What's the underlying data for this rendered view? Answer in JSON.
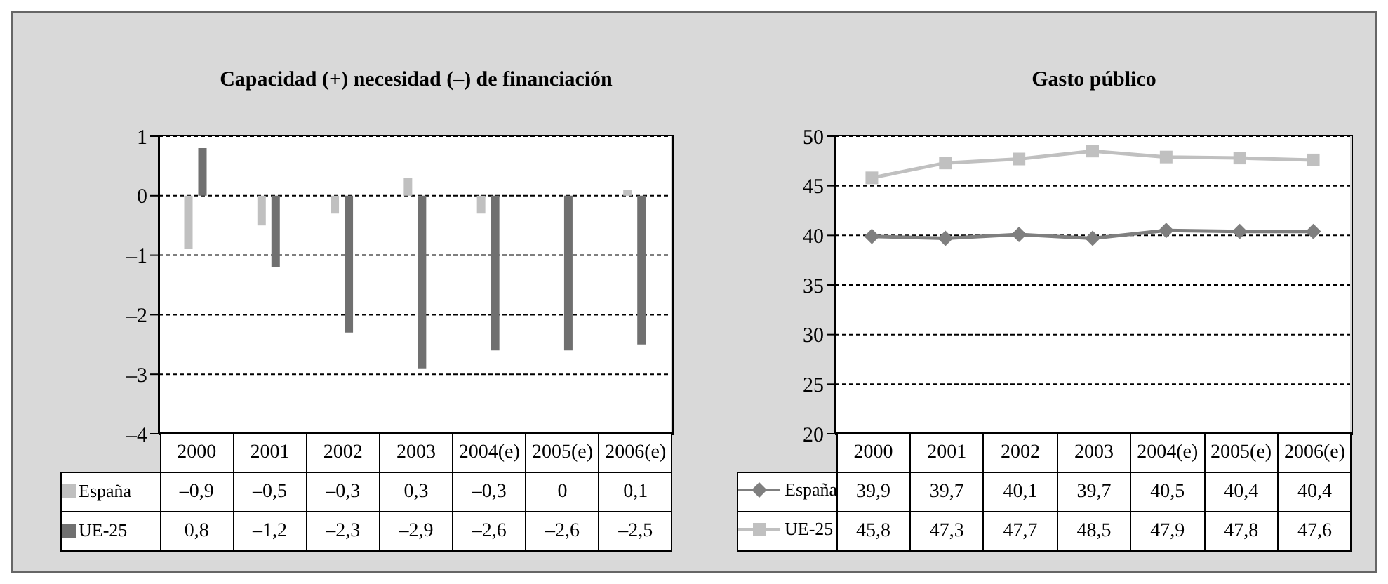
{
  "chart_data": [
    {
      "type": "bar",
      "title": "Capacidad (+) necesidad (–) de financiación",
      "categories": [
        "2000",
        "2001",
        "2002",
        "2003",
        "2004(e)",
        "2005(e)",
        "2006(e)"
      ],
      "series": [
        {
          "name": "España",
          "color": "#c0c0c0",
          "values": [
            -0.9,
            -0.5,
            -0.3,
            0.3,
            -0.3,
            0,
            0.1
          ],
          "value_labels": [
            "–0,9",
            "–0,5",
            "–0,3",
            "0,3",
            "–0,3",
            "0",
            "0,1"
          ]
        },
        {
          "name": "UE-25",
          "color": "#707070",
          "values": [
            0.8,
            -1.2,
            -2.3,
            -2.9,
            -2.6,
            -2.6,
            -2.5
          ],
          "value_labels": [
            "0,8",
            "–1,2",
            "–2,3",
            "–2,9",
            "–2,6",
            "–2,6",
            "–2,5"
          ]
        }
      ],
      "ylim": [
        -4,
        1
      ],
      "yticks": [
        {
          "value": -4,
          "label": "–4"
        },
        {
          "value": -3,
          "label": "–3"
        },
        {
          "value": -2,
          "label": "–2"
        },
        {
          "value": -1,
          "label": "–1"
        },
        0,
        1
      ],
      "grid": "y",
      "legend": "bottom"
    },
    {
      "type": "line",
      "title": "Gasto público",
      "categories": [
        "2000",
        "2001",
        "2002",
        "2003",
        "2004(e)",
        "2005(e)",
        "2006(e)"
      ],
      "series": [
        {
          "name": "España",
          "color": "#7f7f7f",
          "marker": "diamond",
          "values": [
            39.9,
            39.7,
            40.1,
            39.7,
            40.5,
            40.4,
            40.4
          ],
          "value_labels": [
            "39,9",
            "39,7",
            "40,1",
            "39,7",
            "40,5",
            "40,4",
            "40,4"
          ]
        },
        {
          "name": "UE-25",
          "color": "#c0c0c0",
          "marker": "square",
          "values": [
            45.8,
            47.3,
            47.7,
            48.5,
            47.9,
            47.8,
            47.6
          ],
          "value_labels": [
            "45,8",
            "47,3",
            "47,7",
            "48,5",
            "47,9",
            "47,8",
            "47,6"
          ]
        }
      ],
      "ylim": [
        20,
        50
      ],
      "yticks": [
        20,
        25,
        30,
        35,
        40,
        45,
        50
      ],
      "grid": "y",
      "legend": "bottom"
    }
  ]
}
